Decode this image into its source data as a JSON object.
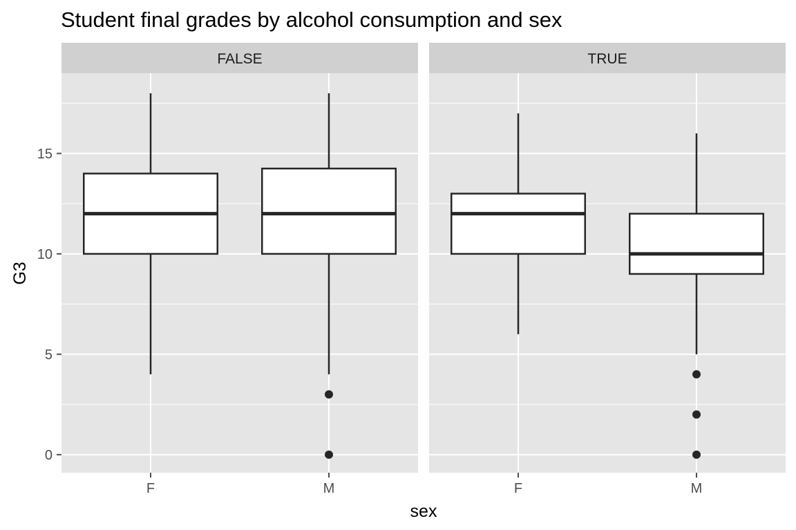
{
  "chart_data": {
    "type": "boxplot",
    "title": "Student final grades by alcohol consumption and sex",
    "xlabel": "sex",
    "ylabel": "G3",
    "ylim": [
      -0.9,
      19.0
    ],
    "yticks": [
      0,
      5,
      10,
      15
    ],
    "categories": [
      "F",
      "M"
    ],
    "grid": true,
    "facets": [
      {
        "label": "FALSE",
        "boxes": [
          {
            "category": "F",
            "whisker_low": 4,
            "q1": 10,
            "median": 12,
            "q3": 14,
            "whisker_high": 18,
            "outliers": []
          },
          {
            "category": "M",
            "whisker_low": 4,
            "q1": 10,
            "median": 12,
            "q3": 14.25,
            "whisker_high": 18,
            "outliers": [
              3,
              0
            ]
          }
        ]
      },
      {
        "label": "TRUE",
        "boxes": [
          {
            "category": "F",
            "whisker_low": 6,
            "q1": 10,
            "median": 12,
            "q3": 13,
            "whisker_high": 17,
            "outliers": []
          },
          {
            "category": "M",
            "whisker_low": 5,
            "q1": 9,
            "median": 10,
            "q3": 12,
            "whisker_high": 16,
            "outliers": [
              4,
              2,
              0
            ]
          }
        ]
      }
    ]
  },
  "colors": {
    "panel_bg": "#e5e5e5",
    "strip_bg": "#d0d0d0",
    "grid": "#ffffff",
    "box_fill": "#ffffff",
    "box_line": "#262626",
    "tick": "#4d4d4d"
  }
}
